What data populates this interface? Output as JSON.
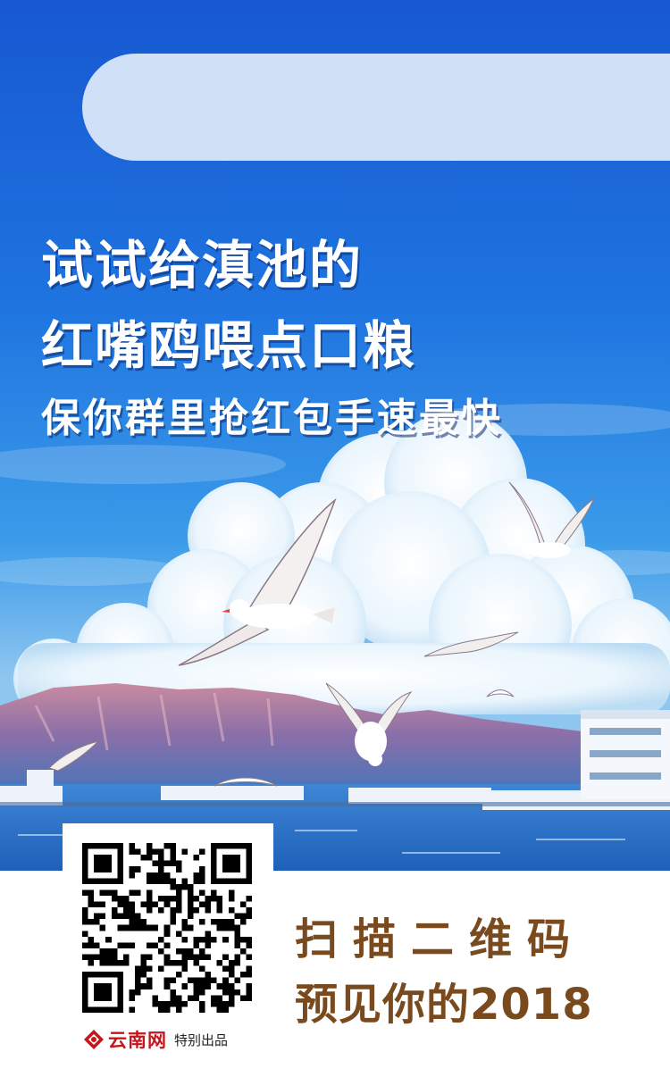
{
  "headline": {
    "line1": "试试给滇池的",
    "line2": "红嘴鸥喂点口粮",
    "line3": "保你群里抢红包手速最快"
  },
  "cta": {
    "line1": "扫描二维码",
    "line2": "预见你的2018"
  },
  "brand": {
    "name": "云南网",
    "tagline": "特别出品",
    "logo_icon": "yunnan-net-logo-icon"
  },
  "colors": {
    "sky_top": "#1a62d6",
    "sky_mid": "#2f8fe8",
    "pill": "#cfe0f7",
    "cta_brown": "#7a4a1f",
    "brand_red": "#c4161c"
  }
}
